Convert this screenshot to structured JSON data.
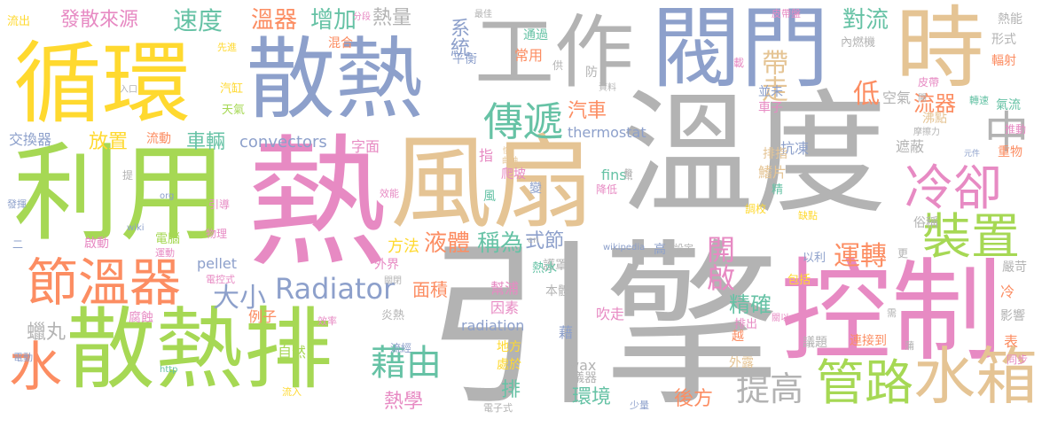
{
  "words": [
    {
      "text": "溫度",
      "color": "#b3b3b3"
    },
    {
      "text": "引擎",
      "color": "#b3b3b3"
    },
    {
      "text": "熱",
      "color": "#e78ac3"
    },
    {
      "text": "風扇",
      "color": "#e5c494"
    },
    {
      "text": "控制",
      "color": "#e78ac3"
    },
    {
      "text": "散熱",
      "color": "#8da0cb"
    },
    {
      "text": "循環",
      "color": "#ffd92f"
    },
    {
      "text": "利用",
      "color": "#a6d854"
    },
    {
      "text": "散熱排",
      "color": "#a6d854"
    },
    {
      "text": "閥門",
      "color": "#8da0cb"
    },
    {
      "text": "時",
      "color": "#e5c494"
    },
    {
      "text": "工作",
      "color": "#b3b3b3"
    },
    {
      "text": "節溫器",
      "color": "#fc8d62"
    },
    {
      "text": "冷卻",
      "color": "#e78ac3"
    },
    {
      "text": "裝置",
      "color": "#a6d854"
    },
    {
      "text": "管路",
      "color": "#a6d854"
    },
    {
      "text": "水箱",
      "color": "#e5c494"
    },
    {
      "text": "傳遞",
      "color": "#66c2a5"
    },
    {
      "text": "中",
      "color": "#b3b3b3"
    },
    {
      "text": "水",
      "color": "#fc8d62"
    },
    {
      "text": "Radiator",
      "color": "#8da0cb"
    },
    {
      "text": "藉由",
      "color": "#66c2a5"
    },
    {
      "text": "大小",
      "color": "#8da0cb"
    },
    {
      "text": "提高",
      "color": "#b3b3b3"
    },
    {
      "text": "開啟",
      "color": "#e78ac3"
    },
    {
      "text": "運轉",
      "color": "#fc8d62"
    },
    {
      "text": "帶走",
      "color": "#e5c494"
    },
    {
      "text": "低",
      "color": "#fc8d62"
    },
    {
      "text": "液體",
      "color": "#fc8d62"
    },
    {
      "text": "稱為",
      "color": "#66c2a5"
    },
    {
      "text": "精確",
      "color": "#66c2a5"
    },
    {
      "text": "速度",
      "color": "#66c2a5"
    },
    {
      "text": "溫器",
      "color": "#fc8d62"
    },
    {
      "text": "增加",
      "color": "#66c2a5"
    },
    {
      "text": "對流",
      "color": "#66c2a5"
    },
    {
      "text": "流器",
      "color": "#fc8d62"
    },
    {
      "text": "發散來源",
      "color": "#e78ac3"
    },
    {
      "text": "放置",
      "color": "#ffd92f"
    },
    {
      "text": "車輛",
      "color": "#66c2a5"
    },
    {
      "text": "汽車",
      "color": "#fc8d62"
    },
    {
      "text": "系統",
      "color": "#8da0cb"
    },
    {
      "text": "熱量",
      "color": "#b3b3b3"
    },
    {
      "text": "後方",
      "color": "#fc8d62"
    },
    {
      "text": "環境",
      "color": "#66c2a5"
    },
    {
      "text": "熱學",
      "color": "#e78ac3"
    },
    {
      "text": "排",
      "color": "#66c2a5"
    },
    {
      "text": "式節",
      "color": "#8da0cb"
    },
    {
      "text": "面積",
      "color": "#fc8d62"
    },
    {
      "text": "蠟丸",
      "color": "#b3b3b3"
    },
    {
      "text": "自然",
      "color": "#a6d854"
    },
    {
      "text": "方法",
      "color": "#ffd92f"
    },
    {
      "text": "convectors",
      "color": "#8da0cb"
    },
    {
      "text": "thermostat",
      "color": "#8da0cb"
    },
    {
      "text": "radiation",
      "color": "#8da0cb"
    },
    {
      "text": "pellet",
      "color": "#8da0cb"
    },
    {
      "text": "fins",
      "color": "#66c2a5"
    },
    {
      "text": "wax",
      "color": "#b3b3b3"
    },
    {
      "text": "wikipedia",
      "color": "#8da0cb"
    },
    {
      "text": "流動",
      "color": "#fc8d62"
    },
    {
      "text": "交換器",
      "color": "#8da0cb"
    },
    {
      "text": "例子",
      "color": "#fc8d62"
    },
    {
      "text": "腐蝕",
      "color": "#e78ac3"
    },
    {
      "text": "外界",
      "color": "#e78ac3"
    },
    {
      "text": "空氣",
      "color": "#b3b3b3"
    },
    {
      "text": "沸點",
      "color": "#e5c494"
    },
    {
      "text": "遮蔽",
      "color": "#b3b3b3"
    },
    {
      "text": "鰭片",
      "color": "#e5c494"
    },
    {
      "text": "抗凍",
      "color": "#8da0cb"
    },
    {
      "text": "排指",
      "color": "#e5c494"
    },
    {
      "text": "車子",
      "color": "#e78ac3"
    },
    {
      "text": "俗稱",
      "color": "#b3b3b3"
    },
    {
      "text": "幫浦",
      "color": "#e78ac3"
    },
    {
      "text": "因素",
      "color": "#e78ac3"
    },
    {
      "text": "吹走",
      "color": "#e78ac3"
    },
    {
      "text": "地方",
      "color": "#ffd92f"
    },
    {
      "text": "處於",
      "color": "#ffd92f"
    },
    {
      "text": "儀器",
      "color": "#b3b3b3"
    },
    {
      "text": "議題",
      "color": "#b3b3b3"
    },
    {
      "text": "連接到",
      "color": "#fc8d62"
    },
    {
      "text": "包括",
      "color": "#ffd92f"
    },
    {
      "text": "以利",
      "color": "#8da0cb"
    },
    {
      "text": "熱能",
      "color": "#b3b3b3"
    },
    {
      "text": "形式",
      "color": "#b3b3b3"
    },
    {
      "text": "輻射",
      "color": "#fc8d62"
    },
    {
      "text": "氣流",
      "color": "#66c2a5"
    },
    {
      "text": "推動",
      "color": "#e78ac3"
    },
    {
      "text": "重物",
      "color": "#fc8d62"
    },
    {
      "text": "嚴苛",
      "color": "#b3b3b3"
    },
    {
      "text": "影響",
      "color": "#b3b3b3"
    },
    {
      "text": "同步",
      "color": "#e78ac3"
    },
    {
      "text": "混合",
      "color": "#fc8d62"
    },
    {
      "text": "通過",
      "color": "#66c2a5"
    },
    {
      "text": "常用",
      "color": "#fc8d62"
    },
    {
      "text": "平衡",
      "color": "#8da0cb"
    },
    {
      "text": "字面",
      "color": "#e78ac3"
    },
    {
      "text": "爬坡",
      "color": "#e78ac3"
    },
    {
      "text": "指",
      "color": "#e78ac3"
    },
    {
      "text": "風",
      "color": "#66c2a5"
    },
    {
      "text": "電腦",
      "color": "#a6d854"
    },
    {
      "text": "物理",
      "color": "#e78ac3"
    },
    {
      "text": "啟動",
      "color": "#e78ac3"
    },
    {
      "text": "運動",
      "color": "#e78ac3"
    },
    {
      "text": "汽缸",
      "color": "#ffd92f"
    },
    {
      "text": "天氣",
      "color": "#a6d854"
    },
    {
      "text": "流出",
      "color": "#ffd92f"
    },
    {
      "text": "先進",
      "color": "#ffd92f"
    },
    {
      "text": "引導",
      "color": "#e78ac3"
    },
    {
      "text": "發揮",
      "color": "#8da0cb"
    },
    {
      "text": "電動",
      "color": "#8da0cb"
    },
    {
      "text": "流入",
      "color": "#ffd92f"
    },
    {
      "text": "效率",
      "color": "#e78ac3"
    },
    {
      "text": "電控式",
      "color": "#e78ac3"
    },
    {
      "text": "流經",
      "color": "#8da0cb"
    },
    {
      "text": "炎熱",
      "color": "#b3b3b3"
    },
    {
      "text": "護罩",
      "color": "#b3b3b3"
    },
    {
      "text": "本體",
      "color": "#b3b3b3"
    },
    {
      "text": "熱水",
      "color": "#66c2a5"
    },
    {
      "text": "高",
      "color": "#8da0cb"
    },
    {
      "text": "設定",
      "color": "#b3b3b3"
    },
    {
      "text": "更",
      "color": "#b3b3b3"
    },
    {
      "text": "冷",
      "color": "#fc8d62"
    },
    {
      "text": "表",
      "color": "#fc8d62"
    },
    {
      "text": "越",
      "color": "#fc8d62"
    },
    {
      "text": "外露",
      "color": "#e5c494"
    },
    {
      "text": "排出",
      "color": "#e78ac3"
    },
    {
      "text": "少量",
      "color": "#8da0cb"
    },
    {
      "text": "電子式",
      "color": "#b3b3b3"
    },
    {
      "text": "藉",
      "color": "#8da0cb"
    },
    {
      "text": "降低",
      "color": "#e78ac3"
    },
    {
      "text": "效能",
      "color": "#e78ac3"
    },
    {
      "text": "變",
      "color": "#8da0cb"
    },
    {
      "text": "曲軸",
      "color": "#e5c494"
    },
    {
      "text": "幫",
      "color": "#b3b3b3"
    },
    {
      "text": "精",
      "color": "#66c2a5"
    },
    {
      "text": "調校",
      "color": "#ffd92f"
    },
    {
      "text": "缺點",
      "color": "#ffd92f"
    },
    {
      "text": "摩擦力",
      "color": "#b3b3b3"
    },
    {
      "text": "元件",
      "color": "#8da0cb"
    },
    {
      "text": "皮帶",
      "color": "#e78ac3"
    },
    {
      "text": "開",
      "color": "#b3b3b3"
    },
    {
      "text": "並未",
      "color": "#8da0cb"
    },
    {
      "text": "內燃機",
      "color": "#b3b3b3"
    },
    {
      "text": "轉速",
      "color": "#66c2a5"
    },
    {
      "text": "載",
      "color": "#e78ac3"
    },
    {
      "text": "皮帶盤",
      "color": "#e78ac3"
    },
    {
      "text": "最佳",
      "color": "#b3b3b3"
    },
    {
      "text": "分段",
      "color": "#e78ac3"
    },
    {
      "text": "供",
      "color": "#b3b3b3"
    },
    {
      "text": "防",
      "color": "#b3b3b3"
    },
    {
      "text": "資料",
      "color": "#b3b3b3"
    },
    {
      "text": "入口",
      "color": "#b3b3b3"
    },
    {
      "text": "提",
      "color": "#b3b3b3"
    },
    {
      "text": "二",
      "color": "#8da0cb"
    },
    {
      "text": "org",
      "color": "#8da0cb"
    },
    {
      "text": "wiki",
      "color": "#8da0cb"
    },
    {
      "text": "http",
      "color": "#66c2a5"
    },
    {
      "text": "en",
      "color": "#b3b3b3"
    },
    {
      "text": "關閉",
      "color": "#b3b3b3"
    },
    {
      "text": "需",
      "color": "#b3b3b3"
    },
    {
      "text": "幣",
      "color": "#b3b3b3"
    },
    {
      "text": "蒲",
      "color": "#b3b3b3"
    },
    {
      "text": "關以",
      "color": "#e78ac3"
    },
    {
      "text": "慣",
      "color": "#e5c494"
    }
  ]
}
